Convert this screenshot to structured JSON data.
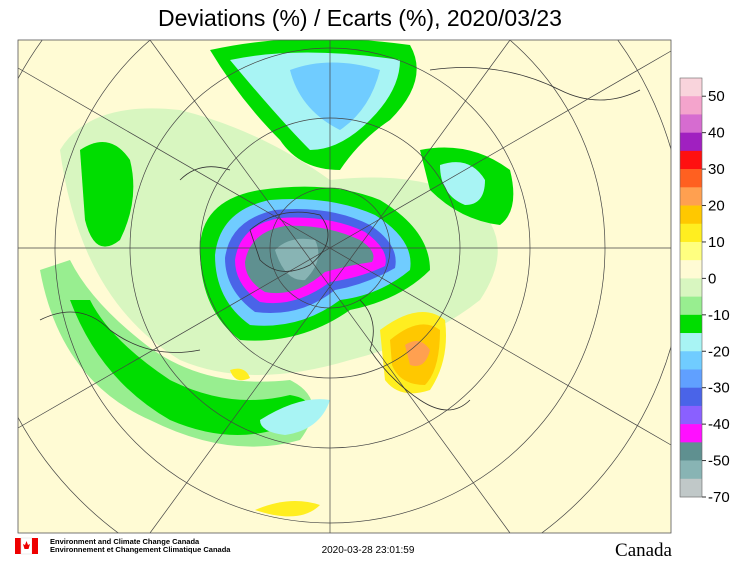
{
  "title": "Deviations (%) / Ecarts (%), 2020/03/23",
  "legend": {
    "colors": [
      "#f9d4dc",
      "#f4a4cc",
      "#d66cd0",
      "#a020c0",
      "#ff1010",
      "#ff6020",
      "#ffa050",
      "#ffc800",
      "#ffee20",
      "#ffff80",
      "#fffbd4",
      "#d8f6c0",
      "#98ee90",
      "#00dd00",
      "#a8f4f4",
      "#70ccff",
      "#60a0ff",
      "#4a64e8",
      "#8a60ff",
      "#ff10ff",
      "#5f9090",
      "#88b4b4",
      "#c0c8c8"
    ],
    "labels": [
      "50",
      "40",
      "30",
      "20",
      "10",
      "0",
      "-10",
      "-20",
      "-30",
      "-40",
      "-50",
      "-70"
    ]
  },
  "footer": {
    "agency_en": "Environment and Climate Change Canada",
    "agency_fr": "Environnement et Changement Climatique Canada",
    "timestamp": "2020-03-28 23:01:59",
    "wordmark": "Canada"
  }
}
